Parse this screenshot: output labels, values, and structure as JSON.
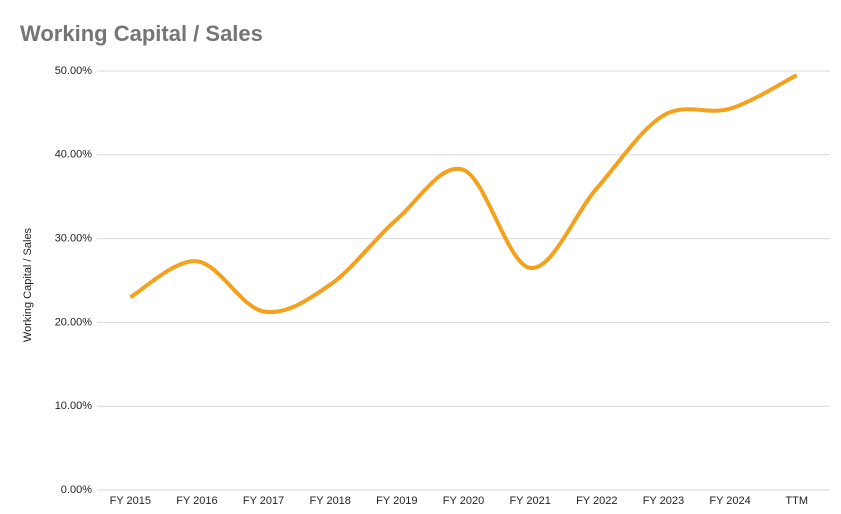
{
  "chart_data": {
    "type": "line",
    "title": "Working Capital / Sales",
    "y_label": "Working Capital / Sales",
    "categories": [
      "FY 2015",
      "FY 2016",
      "FY 2017",
      "FY 2018",
      "FY 2019",
      "FY 2020",
      "FY 2021",
      "FY 2022",
      "FY 2023",
      "FY 2024",
      "TTM"
    ],
    "series": [
      {
        "name": "Working Capital / Sales",
        "color": "#f4a11d",
        "values": [
          23.0,
          27.3,
          21.3,
          24.5,
          32.3,
          38.2,
          26.5,
          36.0,
          44.7,
          45.5,
          49.5
        ]
      }
    ],
    "ylim": [
      0,
      50
    ],
    "yticks": [
      {
        "value": 0,
        "label": "0.00%"
      },
      {
        "value": 10,
        "label": "10.00%"
      },
      {
        "value": 20,
        "label": "20.00%"
      },
      {
        "value": 30,
        "label": "30.00%"
      },
      {
        "value": 40,
        "label": "40.00%"
      },
      {
        "value": 50,
        "label": "50.00%"
      }
    ],
    "grid": true,
    "smooth": true
  }
}
